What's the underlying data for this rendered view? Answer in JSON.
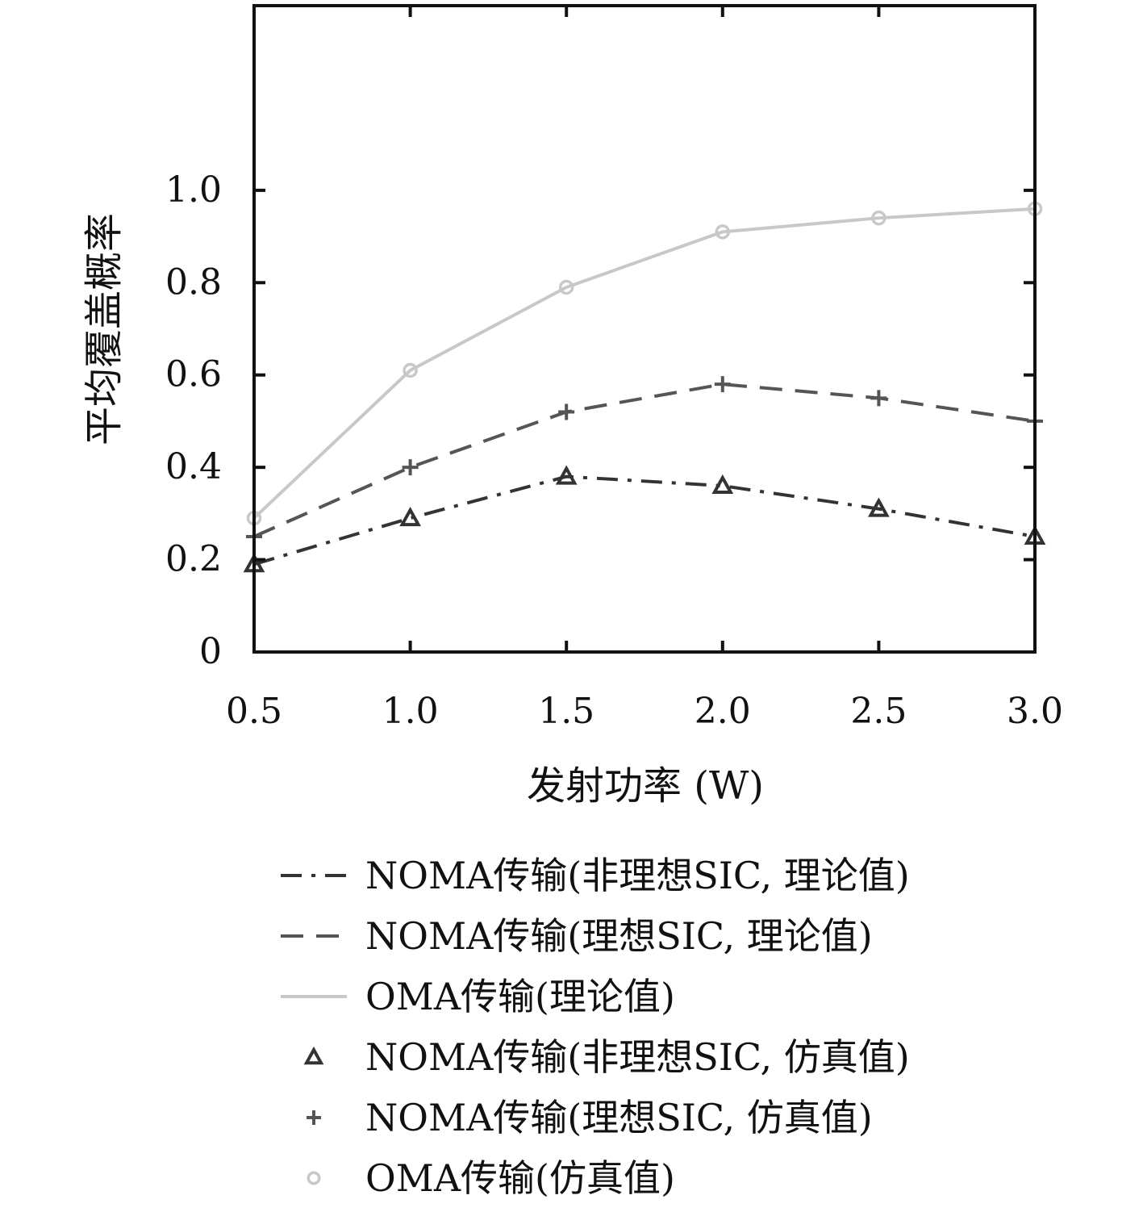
{
  "chart_data": {
    "type": "line",
    "title": "",
    "xlabel": "发射功率 (W)",
    "ylabel": "平均覆盖概率",
    "xlim": [
      0.5,
      3.0
    ],
    "ylim": [
      0,
      1.4
    ],
    "x": [
      0.5,
      1.0,
      1.5,
      2.0,
      2.5,
      3.0
    ],
    "x_tick_labels": [
      "0.5",
      "1.0",
      "1.5",
      "2.0",
      "2.5",
      "3.0"
    ],
    "y_ticks": [
      0,
      0.2,
      0.4,
      0.6,
      0.8,
      1.0
    ],
    "y_tick_labels": [
      "0",
      "0.2",
      "0.4",
      "0.6",
      "0.8",
      "1.0"
    ],
    "grid": false,
    "legend_position": "below-plot",
    "series": [
      {
        "name": "NOMA传输(非理想SIC, 理论值)",
        "kind": "line",
        "style": "dash-dot",
        "color": "#333333",
        "values": [
          0.19,
          0.29,
          0.38,
          0.36,
          0.31,
          0.25
        ]
      },
      {
        "name": "NOMA传输(理想SIC, 理论值)",
        "kind": "line",
        "style": "dashed",
        "color": "#555555",
        "values": [
          0.25,
          0.4,
          0.52,
          0.58,
          0.55,
          0.5
        ]
      },
      {
        "name": "OMA传输(理论值)",
        "kind": "line",
        "style": "solid",
        "color": "#c8c8c8",
        "values": [
          0.29,
          0.61,
          0.79,
          0.91,
          0.94,
          0.96
        ]
      },
      {
        "name": "NOMA传输(非理想SIC, 仿真值)",
        "kind": "marker",
        "marker": "triangle",
        "color": "#333333",
        "values": [
          0.19,
          0.29,
          0.38,
          0.36,
          0.31,
          0.25
        ]
      },
      {
        "name": "NOMA传输(理想SIC, 仿真值)",
        "kind": "marker",
        "marker": "plus",
        "color": "#555555",
        "values": [
          0.25,
          0.4,
          0.52,
          0.58,
          0.55,
          0.5
        ]
      },
      {
        "name": "OMA传输(仿真值)",
        "kind": "marker",
        "marker": "circle",
        "color": "#c8c8c8",
        "values": [
          0.29,
          0.61,
          0.79,
          0.91,
          0.94,
          0.96
        ]
      }
    ]
  }
}
